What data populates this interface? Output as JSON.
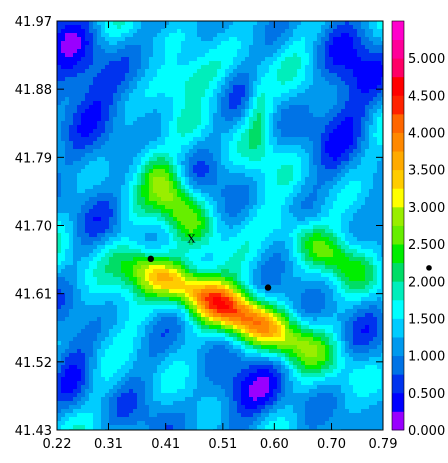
{
  "chart_data": {
    "type": "heatmap",
    "title": "",
    "xlabel": "",
    "ylabel": "",
    "xlim": [
      0.22,
      0.79
    ],
    "ylim": [
      41.43,
      41.97
    ],
    "x_ticks": [
      "0.22",
      "0.31",
      "0.41",
      "0.51",
      "0.60",
      "0.70",
      "0.79"
    ],
    "y_ticks": [
      "41.43",
      "41.52",
      "41.61",
      "41.70",
      "41.79",
      "41.88",
      "41.97"
    ],
    "colorbar": {
      "levels": [
        0.0,
        0.25,
        0.5,
        0.75,
        1.0,
        1.25,
        1.5,
        1.75,
        2.0,
        2.25,
        2.5,
        2.75,
        3.0,
        3.25,
        3.5,
        3.75,
        4.0,
        4.25,
        4.5,
        4.75,
        5.0,
        5.25,
        5.5
      ],
      "labels": [
        "0.000",
        "0.500",
        "1.000",
        "1.500",
        "2.000",
        "2.500",
        "3.000",
        "3.500",
        "4.000",
        "4.500",
        "5.000"
      ],
      "colors": [
        "#9900ff",
        "#0000ff",
        "#0033ee",
        "#0073e6",
        "#0099ee",
        "#00ccff",
        "#00ffff",
        "#00eebb",
        "#00dd66",
        "#00ee00",
        "#66ee00",
        "#99ee00",
        "#ffff00",
        "#ffcc00",
        "#ffaa00",
        "#ff8800",
        "#ff6600",
        "#ff2200",
        "#ff0000",
        "#ff0066",
        "#ff0099",
        "#ff00cc",
        "#ff00ff"
      ]
    },
    "markers": [
      {
        "x": 0.384,
        "y": 41.656,
        "symbol": "dot"
      },
      {
        "x": 0.589,
        "y": 41.618,
        "symbol": "dot"
      }
    ],
    "annotations": [
      {
        "text": "X",
        "x": 0.455,
        "y": 41.683
      }
    ]
  }
}
